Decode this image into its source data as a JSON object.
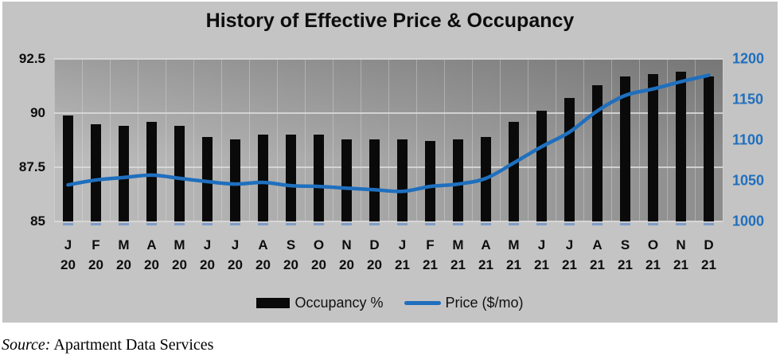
{
  "title": "History of Effective Price & Occupancy",
  "legend": {
    "occupancy_label": "Occupancy %",
    "price_label": "Price ($/mo)"
  },
  "source": {
    "label": "Source:",
    "text": "Apartment Data Services"
  },
  "colors": {
    "bar_black": "#0a0a0a",
    "line_blue": "#1f6fbe",
    "right_axis_blue": "#1f6fbe",
    "base_dash_blue": "#7e9cc9",
    "frame_gray": "#c4c4c4"
  },
  "chart_data": {
    "type": "combo-bar-line",
    "title": "History of Effective Price & Occupancy",
    "categories_month": [
      "J",
      "F",
      "M",
      "A",
      "M",
      "J",
      "J",
      "A",
      "S",
      "O",
      "N",
      "D",
      "J",
      "F",
      "M",
      "A",
      "M",
      "J",
      "J",
      "A",
      "S",
      "O",
      "N",
      "D"
    ],
    "categories_year": [
      "20",
      "20",
      "20",
      "20",
      "20",
      "20",
      "20",
      "20",
      "20",
      "20",
      "20",
      "20",
      "21",
      "21",
      "21",
      "21",
      "21",
      "21",
      "21",
      "21",
      "21",
      "21",
      "21",
      "21"
    ],
    "series": [
      {
        "name": "Occupancy %",
        "type": "bar",
        "axis": "left",
        "values": [
          89.9,
          89.5,
          89.4,
          89.6,
          89.4,
          88.9,
          88.8,
          89.0,
          89.0,
          89.0,
          88.8,
          88.8,
          88.8,
          88.7,
          88.8,
          88.9,
          89.6,
          90.1,
          90.7,
          91.3,
          91.7,
          91.8,
          91.9,
          91.7
        ]
      },
      {
        "name": "Price ($/mo)",
        "type": "line",
        "axis": "right",
        "values": [
          1045,
          1051,
          1054,
          1057,
          1053,
          1049,
          1046,
          1048,
          1044,
          1043,
          1041,
          1039,
          1037,
          1043,
          1046,
          1053,
          1072,
          1092,
          1110,
          1136,
          1155,
          1163,
          1172,
          1180
        ]
      }
    ],
    "left_axis": {
      "min": 85,
      "max": 92.5,
      "ticks": [
        92.5,
        90,
        87.5,
        85
      ]
    },
    "right_axis": {
      "min": 1000,
      "max": 1200,
      "ticks": [
        1200,
        1150,
        1100,
        1050,
        1000
      ]
    },
    "grid": "horizontal-major + vertical-category",
    "legend_position": "bottom"
  }
}
